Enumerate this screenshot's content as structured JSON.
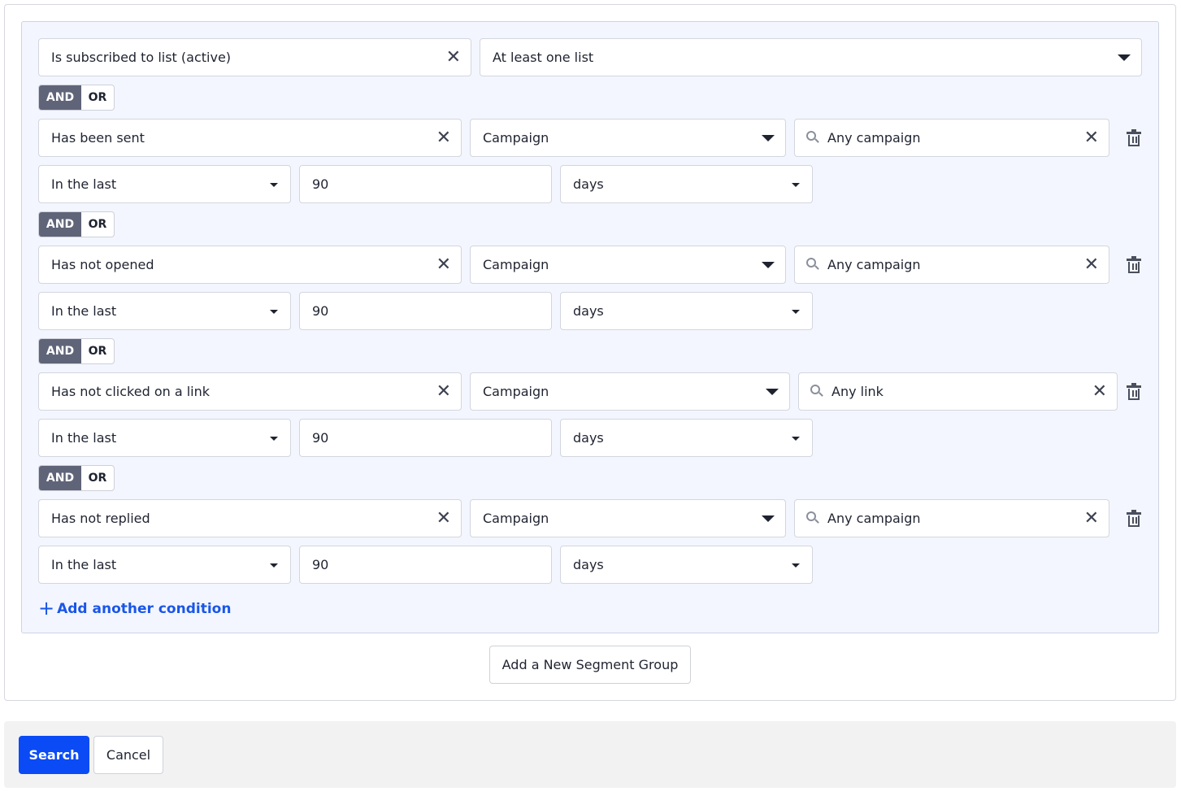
{
  "first_condition": {
    "field": "Is subscribed to list (active)",
    "list_mode": "At least one list"
  },
  "toggle": {
    "and": "AND",
    "or": "OR",
    "selected": "AND"
  },
  "conditions": [
    {
      "action": "Has been sent",
      "type": "Campaign",
      "target": "Any campaign",
      "range": "In the last",
      "amount": "90",
      "unit": "days"
    },
    {
      "action": "Has not opened",
      "type": "Campaign",
      "target": "Any campaign",
      "range": "In the last",
      "amount": "90",
      "unit": "days"
    },
    {
      "action": "Has not clicked on a link",
      "type": "Campaign",
      "target": "Any link",
      "range": "In the last",
      "amount": "90",
      "unit": "days"
    },
    {
      "action": "Has not replied",
      "type": "Campaign",
      "target": "Any campaign",
      "range": "In the last",
      "amount": "90",
      "unit": "days"
    }
  ],
  "add_condition_label": "Add another condition",
  "add_group_label": "Add a New Segment Group",
  "footer": {
    "search_label": "Search",
    "cancel_label": "Cancel"
  },
  "colors": {
    "primary": "#0a4bf5",
    "toggle_active": "#5f6478",
    "panel_bg": "#f3f6fe",
    "link": "#1a56e8"
  },
  "icons": {
    "clear": "close-icon",
    "dropdown": "caret-down-icon",
    "search": "search-icon",
    "delete": "trash-icon",
    "add": "plus-icon"
  }
}
